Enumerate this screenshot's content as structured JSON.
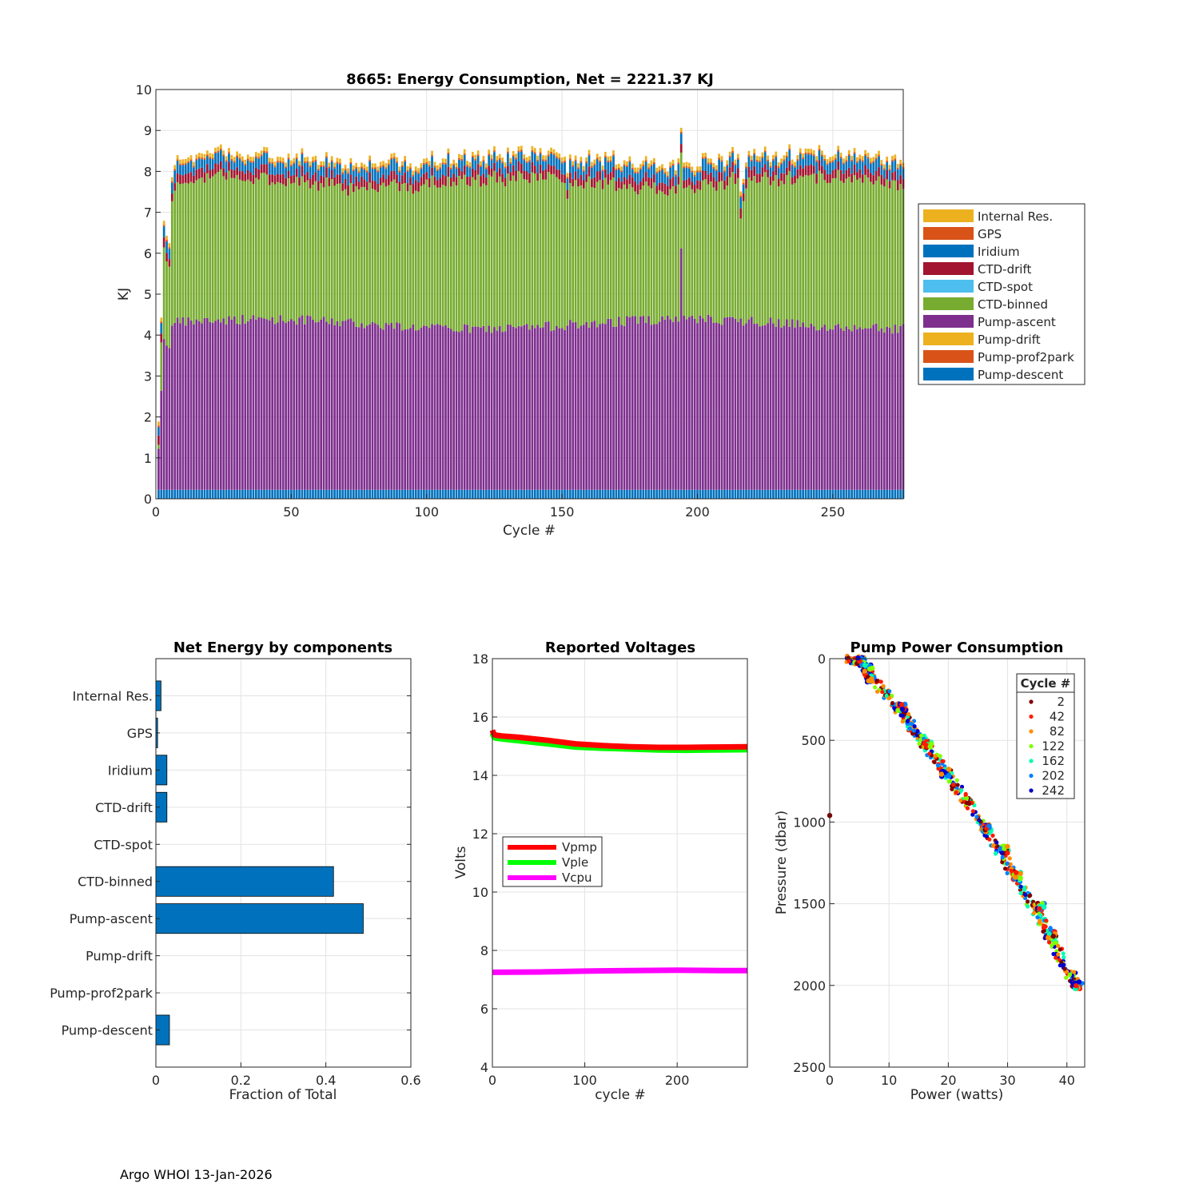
{
  "footer": "Argo WHOI 13-Jan-2026",
  "colors": {
    "internal_res": "#EDB120",
    "gps": "#D95319",
    "iridium": "#0072BD",
    "ctd_drift": "#A2142F",
    "ctd_spot": "#4DBEEE",
    "ctd_binned": "#77AC30",
    "pump_ascent": "#7E2F8E",
    "pump_drift": "#EDB120",
    "pump_prof2park": "#D95319",
    "pump_descent": "#0072BD",
    "bar_blue": "#0072BD"
  },
  "chart_data": [
    {
      "id": "energy",
      "type": "bar",
      "stacked": true,
      "title": "8665: Energy Consumption,  Net = 2221.37 KJ",
      "xlabel": "Cycle #",
      "ylabel": "KJ",
      "xlim": [
        0,
        276
      ],
      "ylim": [
        0,
        10
      ],
      "xticks": [
        0,
        50,
        100,
        150,
        200,
        250
      ],
      "yticks": [
        0,
        1,
        2,
        3,
        4,
        5,
        6,
        7,
        8,
        9,
        10
      ],
      "grid": true,
      "legend_position": "right",
      "legend": [
        "Internal Res.",
        "GPS",
        "Iridium",
        "CTD-drift",
        "CTD-spot",
        "CTD-binned",
        "Pump-ascent",
        "Pump-drift",
        "Pump-prof2park",
        "Pump-descent"
      ],
      "n_cycles": 276,
      "typical_cycle_kj": {
        "Pump-descent": 0.22,
        "Pump-prof2park": 0.0,
        "Pump-drift": 0.0,
        "Pump-ascent": 4.05,
        "CTD-binned": 3.55,
        "CTD-spot": 0.0,
        "CTD-drift": 0.22,
        "Iridium": 0.25,
        "GPS": 0.04,
        "Internal Res.": 0.1
      },
      "cycle_totals": {
        "baseline": 8.35,
        "early": [
          [
            1,
            1.5
          ],
          [
            2,
            4.4
          ],
          [
            3,
            6.7
          ],
          [
            4,
            6.4
          ],
          [
            5,
            6.3
          ],
          [
            6,
            7.9
          ],
          [
            7,
            8.1
          ],
          [
            8,
            8.3
          ]
        ],
        "peaks": [
          [
            194,
            9.1
          ],
          [
            213,
            8.6
          ],
          [
            217,
            7.9
          ],
          [
            252,
            8.6
          ]
        ],
        "dips": [
          [
            152,
            7.9
          ],
          [
            216,
            7.4
          ]
        ]
      },
      "ascent_cycle_194": 5.9
    },
    {
      "id": "net-energy",
      "type": "bar",
      "orientation": "horizontal",
      "title": "Net Energy by components",
      "xlabel": "Fraction of Total",
      "ylabel": "",
      "xlim": [
        0,
        0.6
      ],
      "xticks": [
        0,
        0.2,
        0.4,
        0.6
      ],
      "xticklabels": [
        "0",
        "0.2",
        "0.4",
        "0.6"
      ],
      "grid": true,
      "categories": [
        "Internal Res.",
        "GPS",
        "Iridium",
        "CTD-drift",
        "CTD-spot",
        "CTD-binned",
        "Pump-ascent",
        "Pump-drift",
        "Pump-prof2park",
        "Pump-descent"
      ],
      "values": [
        0.012,
        0.004,
        0.026,
        0.026,
        0.0,
        0.418,
        0.488,
        0.0,
        0.0,
        0.032
      ]
    },
    {
      "id": "voltages",
      "type": "line",
      "title": "Reported Voltages",
      "xlabel": "cycle #",
      "ylabel": "Volts",
      "xlim": [
        0,
        276
      ],
      "ylim": [
        4,
        18
      ],
      "xticks": [
        0,
        100,
        200
      ],
      "yticks": [
        4,
        6,
        8,
        10,
        12,
        14,
        16,
        18
      ],
      "grid": true,
      "legend_position": "middle-left",
      "series": [
        {
          "name": "Vpmp",
          "color": "#FF0000",
          "x": [
            0,
            1,
            3,
            10,
            30,
            60,
            90,
            120,
            150,
            180,
            210,
            240,
            276
          ],
          "values": [
            15.55,
            15.45,
            15.38,
            15.35,
            15.3,
            15.2,
            15.08,
            15.02,
            14.98,
            14.96,
            14.96,
            14.97,
            14.98
          ]
        },
        {
          "name": "Vple",
          "color": "#00FF00",
          "x": [
            0,
            1,
            3,
            10,
            30,
            60,
            90,
            120,
            150,
            180,
            210,
            240,
            276
          ],
          "values": [
            15.45,
            15.35,
            15.28,
            15.25,
            15.18,
            15.08,
            14.97,
            14.93,
            14.9,
            14.87,
            14.86,
            14.87,
            14.88
          ]
        },
        {
          "name": "Vcpu",
          "color": "#FF00FF",
          "x": [
            0,
            50,
            100,
            150,
            200,
            250,
            276
          ],
          "values": [
            7.25,
            7.26,
            7.29,
            7.31,
            7.32,
            7.31,
            7.31
          ]
        }
      ]
    },
    {
      "id": "pump-power",
      "type": "scatter",
      "title": "Pump Power Consumption",
      "xlabel": "Power (watts)",
      "ylabel": "Pressure (dbar)",
      "xlim": [
        0,
        43
      ],
      "ylim": [
        0,
        2500
      ],
      "y_reversed": true,
      "xticks": [
        0,
        10,
        20,
        30,
        40
      ],
      "yticks": [
        0,
        500,
        1000,
        1500,
        2000,
        2500
      ],
      "grid": true,
      "legend_title": "Cycle #",
      "legend_position": "top-right",
      "legend": [
        {
          "label": "2",
          "color": "#800000"
        },
        {
          "label": "42",
          "color": "#FF1A00"
        },
        {
          "label": "82",
          "color": "#FF8C00"
        },
        {
          "label": "122",
          "color": "#7FFF00"
        },
        {
          "label": "162",
          "color": "#00FFB0"
        },
        {
          "label": "202",
          "color": "#0080FF"
        },
        {
          "label": "242",
          "color": "#0000CD"
        }
      ],
      "outlier": {
        "x": 0,
        "y": 960
      },
      "trend": {
        "x": [
          3.5,
          5,
          8,
          12,
          16,
          20,
          24,
          28,
          32,
          36,
          40,
          42
        ],
        "y": [
          0,
          20,
          150,
          330,
          520,
          710,
          920,
          1140,
          1380,
          1620,
          1900,
          2010
        ]
      },
      "clusters": [
        {
          "x": 5.2,
          "y": 10
        },
        {
          "x": 6.5,
          "y": 60
        },
        {
          "x": 6.8,
          "y": 120
        },
        {
          "x": 12.2,
          "y": 300
        },
        {
          "x": 16.5,
          "y": 530
        },
        {
          "x": 19.5,
          "y": 700
        },
        {
          "x": 26.5,
          "y": 1040
        },
        {
          "x": 29.5,
          "y": 1170
        },
        {
          "x": 31.5,
          "y": 1330
        },
        {
          "x": 35.5,
          "y": 1520
        },
        {
          "x": 37.5,
          "y": 1690
        },
        {
          "x": 41.5,
          "y": 2000
        }
      ]
    }
  ]
}
